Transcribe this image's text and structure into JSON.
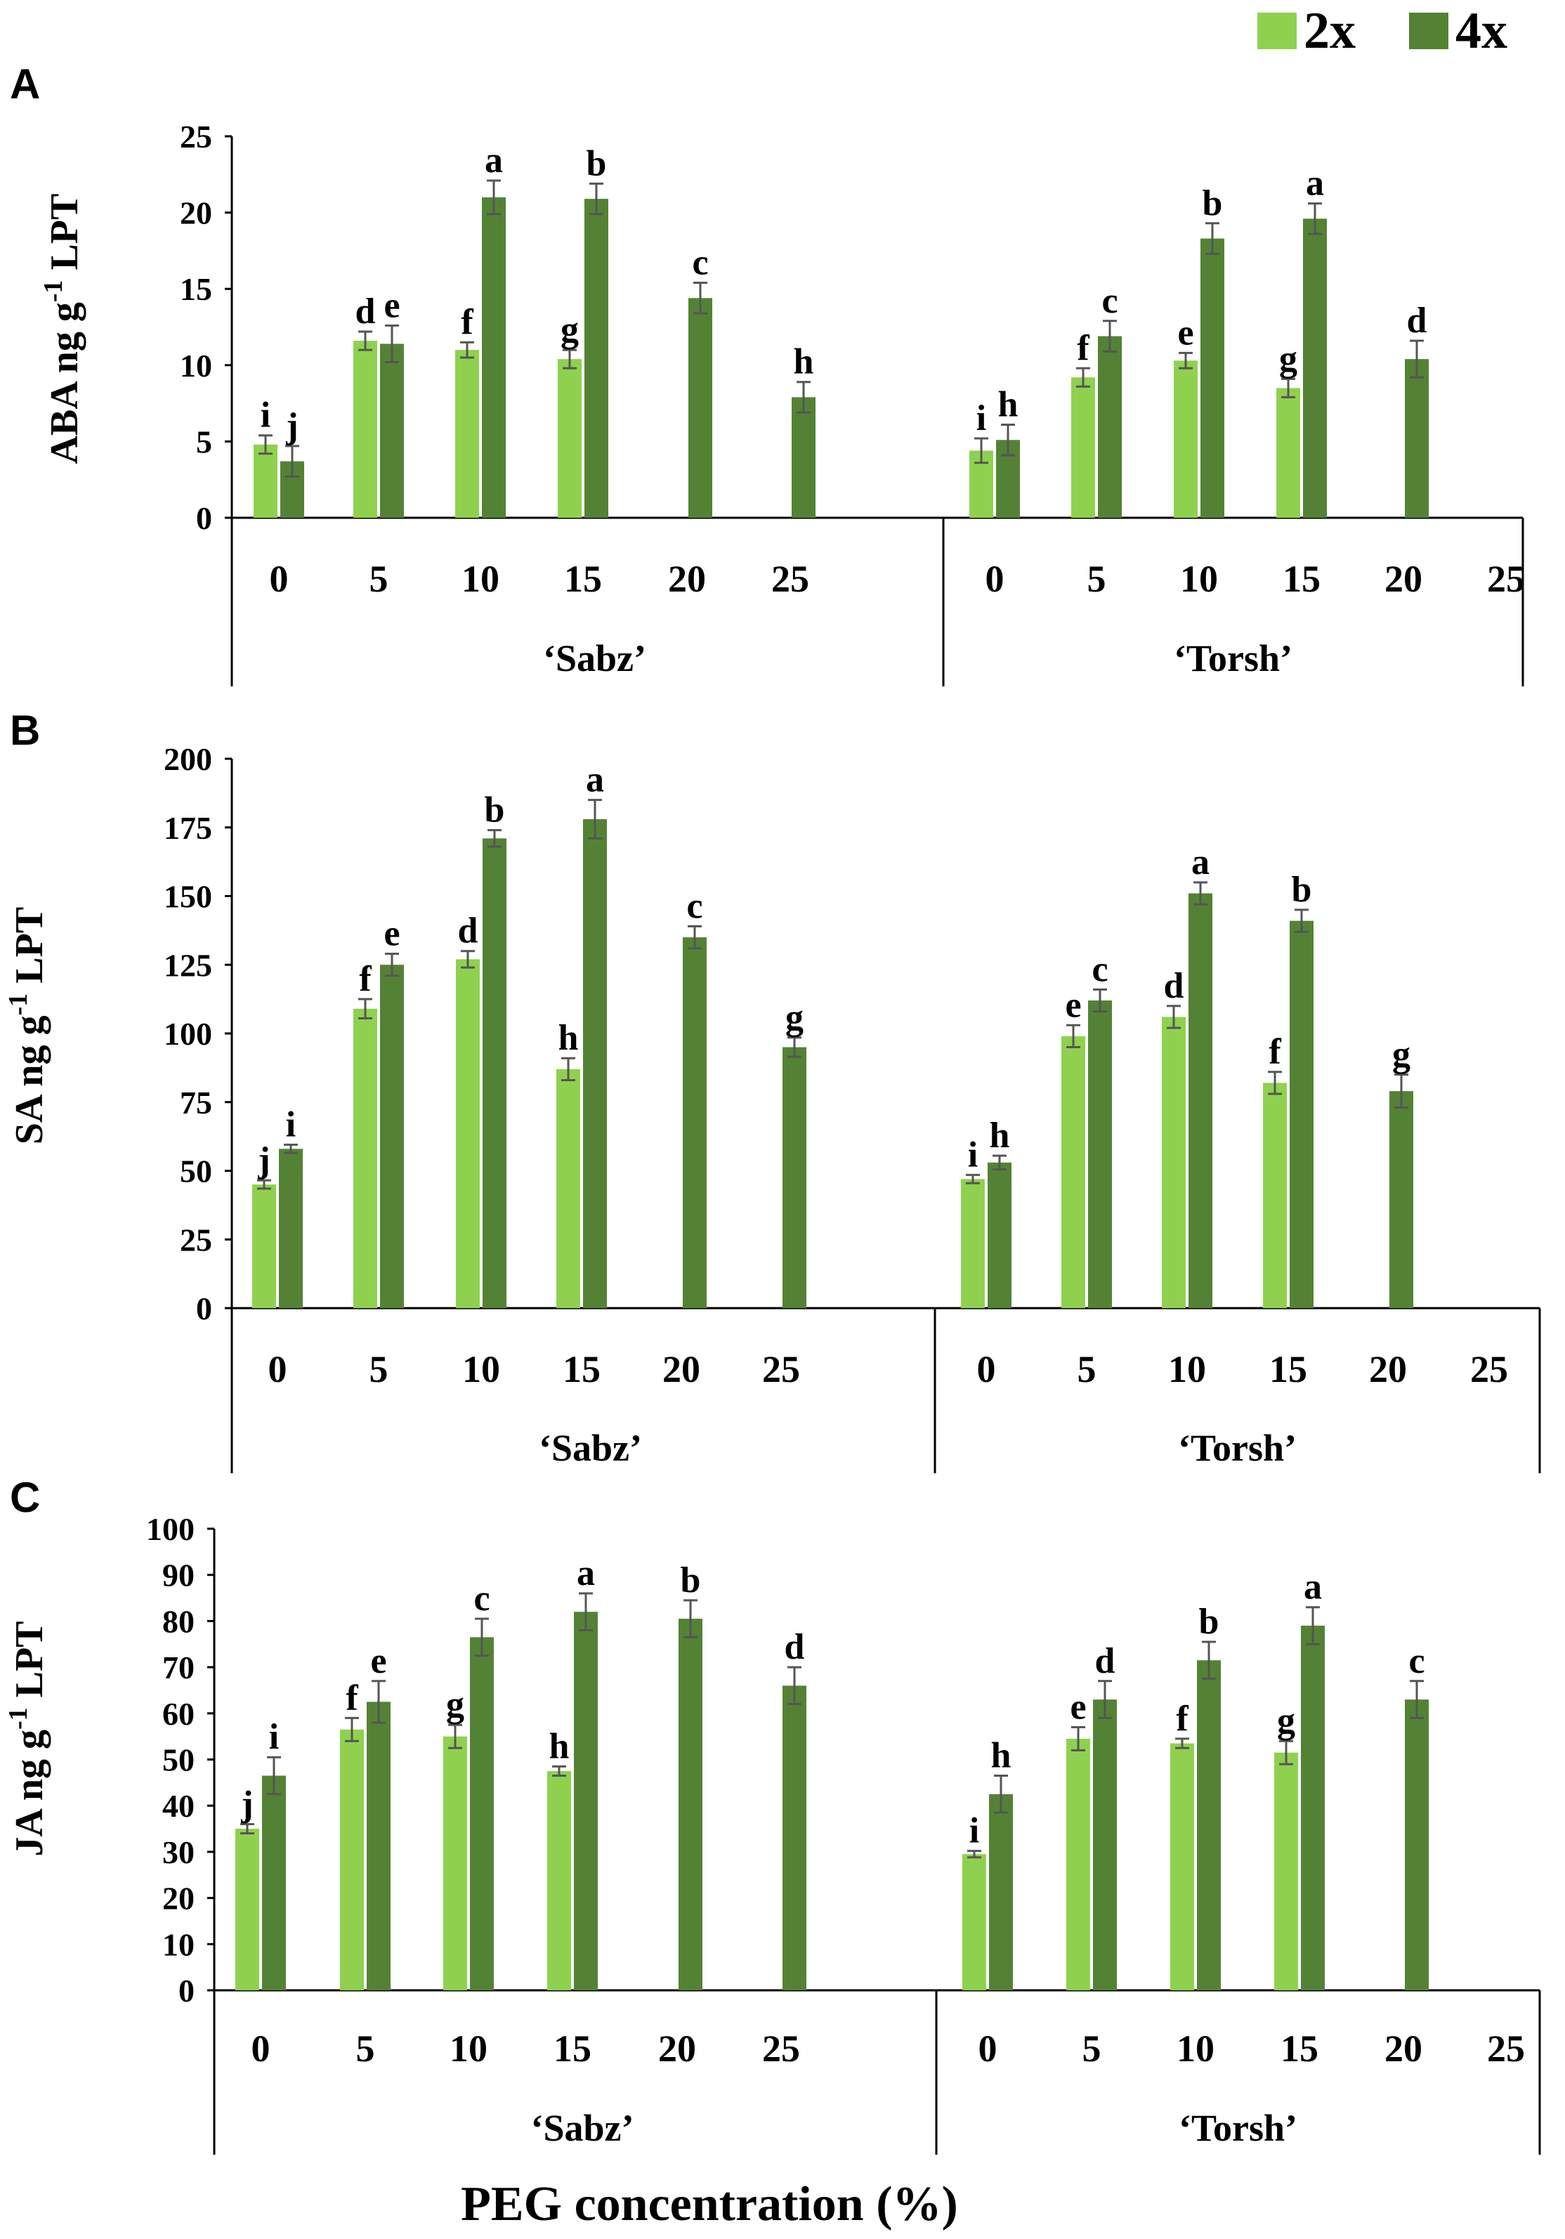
{
  "figure": {
    "x_axis_title": "PEG concentration (%)",
    "legend": [
      {
        "label": "2x",
        "color": "#8fd14f"
      },
      {
        "label": "4x",
        "color": "#548235"
      }
    ]
  },
  "chart_data": [
    {
      "type": "bar",
      "panel": "A",
      "ylabel_main": "ABA ng g",
      "ylabel_sup": "-1",
      "ylabel_end": " LPT",
      "ylim": [
        0,
        25
      ],
      "yticks": [
        0,
        5,
        10,
        15,
        20,
        25
      ],
      "groups": [
        {
          "label": "‘Sabz’",
          "categories": [
            "0",
            "5",
            "10",
            "15",
            "20",
            "25"
          ],
          "series": {
            "2x": {
              "values": [
                4.8,
                11.6,
                11.0,
                10.4,
                null,
                null
              ],
              "errors": [
                0.6,
                0.6,
                0.5,
                0.6,
                null,
                null
              ],
              "letters": [
                "i",
                "d",
                "f",
                "g",
                null,
                null
              ]
            },
            "4x": {
              "values": [
                3.7,
                11.4,
                21.0,
                20.9,
                14.4,
                7.9
              ],
              "errors": [
                1.0,
                1.2,
                1.1,
                1.0,
                1.0,
                1.0
              ],
              "letters": [
                "j",
                "e",
                "a",
                "b",
                "c",
                "h"
              ]
            }
          }
        },
        {
          "label": "‘Torsh’",
          "categories": [
            "0",
            "5",
            "10",
            "15",
            "20",
            "25"
          ],
          "series": {
            "2x": {
              "values": [
                4.4,
                9.2,
                10.3,
                8.5,
                null,
                null
              ],
              "errors": [
                0.8,
                0.6,
                0.5,
                0.6,
                null,
                null
              ],
              "letters": [
                "i",
                "f",
                "e",
                "g",
                null,
                null
              ]
            },
            "4x": {
              "values": [
                5.1,
                11.9,
                18.3,
                19.6,
                10.4,
                null
              ],
              "errors": [
                1.0,
                1.0,
                1.0,
                1.0,
                1.2,
                null
              ],
              "letters": [
                "h",
                "c",
                "b",
                "a",
                "d",
                null
              ]
            }
          }
        }
      ]
    },
    {
      "type": "bar",
      "panel": "B",
      "ylabel_main": "SA ng g",
      "ylabel_sup": "-1",
      "ylabel_end": " LPT",
      "ylim": [
        0,
        200
      ],
      "yticks": [
        0,
        25,
        50,
        75,
        100,
        125,
        150,
        175,
        200
      ],
      "groups": [
        {
          "label": "‘Sabz’",
          "categories": [
            "0",
            "5",
            "10",
            "15",
            "20",
            "25"
          ],
          "series": {
            "2x": {
              "values": [
                45,
                109,
                127,
                87,
                null,
                null
              ],
              "errors": [
                1.5,
                3.5,
                3,
                4,
                null,
                null
              ],
              "letters": [
                "j",
                "f",
                "d",
                "h",
                null,
                null
              ]
            },
            "4x": {
              "values": [
                58,
                125,
                171,
                178,
                135,
                95
              ],
              "errors": [
                1.5,
                4,
                3,
                7,
                4,
                3.5
              ],
              "letters": [
                "i",
                "e",
                "b",
                "a",
                "c",
                "g"
              ]
            }
          }
        },
        {
          "label": "‘Torsh’",
          "categories": [
            "0",
            "5",
            "10",
            "15",
            "20",
            "25"
          ],
          "series": {
            "2x": {
              "values": [
                47,
                99,
                106,
                82,
                null,
                null
              ],
              "errors": [
                1.5,
                4,
                4,
                4,
                null,
                null
              ],
              "letters": [
                "i",
                "e",
                "d",
                "f",
                null,
                null
              ]
            },
            "4x": {
              "values": [
                53,
                112,
                151,
                141,
                79,
                null
              ],
              "errors": [
                2.5,
                4,
                4,
                4,
                6,
                null
              ],
              "letters": [
                "h",
                "c",
                "a",
                "b",
                "g",
                null
              ]
            }
          }
        }
      ]
    },
    {
      "type": "bar",
      "panel": "C",
      "ylabel_main": "JA ng g",
      "ylabel_sup": "-1",
      "ylabel_end": " LPT",
      "ylim": [
        0,
        100
      ],
      "yticks": [
        0,
        10,
        20,
        30,
        40,
        50,
        60,
        70,
        80,
        90,
        100
      ],
      "groups": [
        {
          "label": "‘Sabz’",
          "categories": [
            "0",
            "5",
            "10",
            "15",
            "20",
            "25"
          ],
          "series": {
            "2x": {
              "values": [
                35,
                56.5,
                55,
                47.5,
                null,
                null
              ],
              "errors": [
                1.0,
                2.5,
                2.5,
                1.0,
                null,
                null
              ],
              "letters": [
                "j",
                "f",
                "g",
                "h",
                null,
                null
              ]
            },
            "4x": {
              "values": [
                46.5,
                62.5,
                76.5,
                82,
                80.5,
                66
              ]
            },
            "4x_errors": [
              4,
              4.5,
              4,
              4,
              4,
              4
            ],
            "4x_letters": [
              "i",
              "e",
              "c",
              "a",
              "b",
              "d"
            ]
          }
        },
        {
          "label": "‘Torsh’",
          "categories": [
            "0",
            "5",
            "10",
            "15",
            "20",
            "25"
          ],
          "series": {
            "2x": {
              "values": [
                29.5,
                54.5,
                53.5,
                51.5,
                null,
                null
              ],
              "errors": [
                0.7,
                2.5,
                1.0,
                2.5,
                null,
                null
              ],
              "letters": [
                "i",
                "e",
                "f",
                "g",
                null,
                null
              ]
            },
            "4x": {
              "values": [
                42.5,
                63,
                71.5,
                79,
                63,
                null
              ],
              "errors": [
                4,
                4,
                4,
                4,
                4,
                null
              ],
              "letters": [
                "h",
                "d",
                "b",
                "a",
                "c",
                null
              ]
            }
          }
        }
      ]
    }
  ]
}
